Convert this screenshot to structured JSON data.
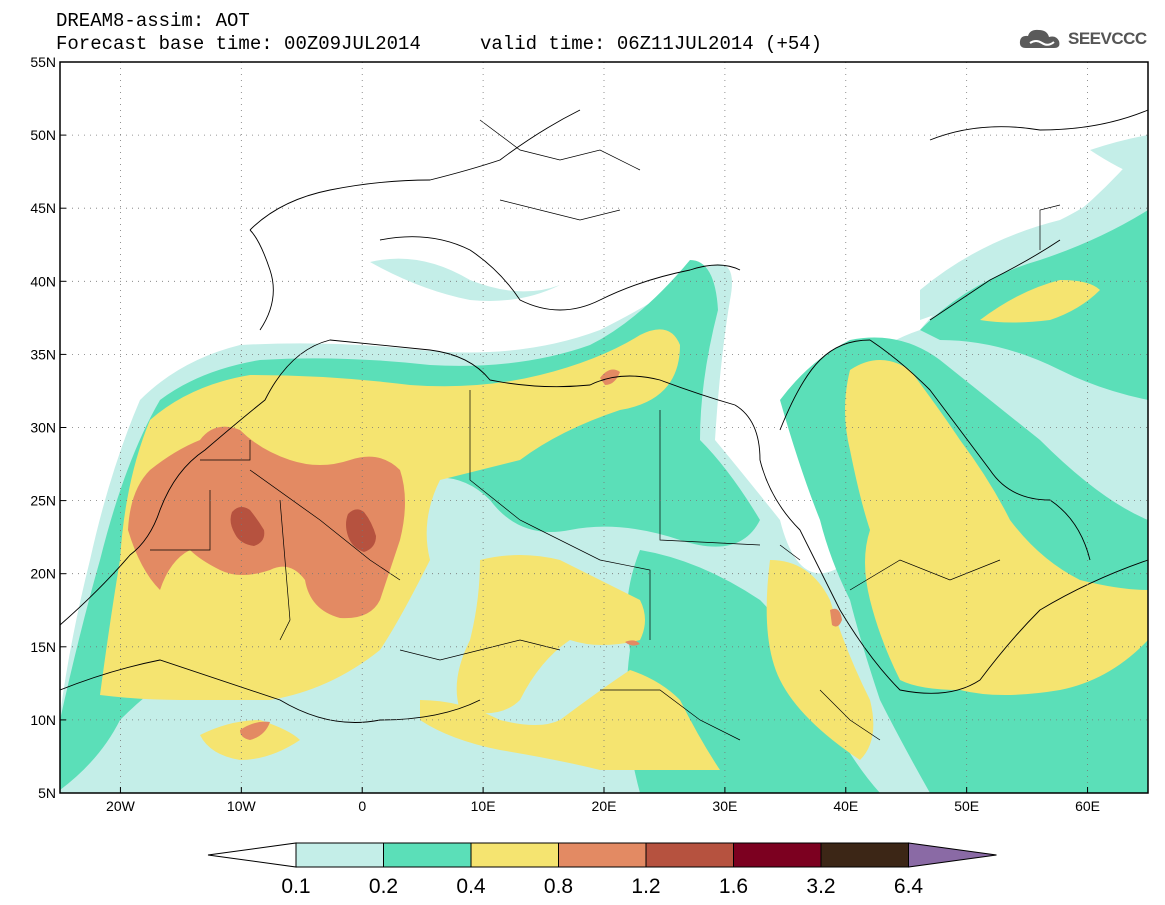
{
  "title": {
    "line1": "DREAM8-assim: AOT",
    "line2": "Forecast base time: 00Z09JUL2014",
    "valid": "valid time: 06Z11JUL2014 (+54)"
  },
  "logo": {
    "text": "SEEVCCC",
    "icon": "cloud-icon"
  },
  "map": {
    "lon_range": [
      -25,
      65
    ],
    "lat_range": [
      5,
      55
    ],
    "lon_ticks": [
      "20W",
      "10W",
      "0",
      "10E",
      "20E",
      "30E",
      "40E",
      "50E",
      "60E"
    ],
    "lat_ticks": [
      "55N",
      "50N",
      "45N",
      "40N",
      "35N",
      "30N",
      "25N",
      "20N",
      "15N",
      "10N",
      "5N"
    ],
    "grid": "dotted",
    "variable": "Aerosol optical thickness"
  },
  "colorbar": {
    "labels": [
      "0.1",
      "0.2",
      "0.4",
      "0.8",
      "1.2",
      "1.6",
      "3.2",
      "6.4"
    ],
    "colors": [
      "#ffffff",
      "#c4eee8",
      "#5bdfb8",
      "#f5e470",
      "#e38a63",
      "#b6523f",
      "#7c0020",
      "#3c2616",
      "#8a6aa5"
    ]
  },
  "levels": {
    "c1": "#c4eee8",
    "c2": "#5bdfb8",
    "c3": "#f5e470",
    "c4": "#e38a63",
    "c5": "#b6523f"
  }
}
